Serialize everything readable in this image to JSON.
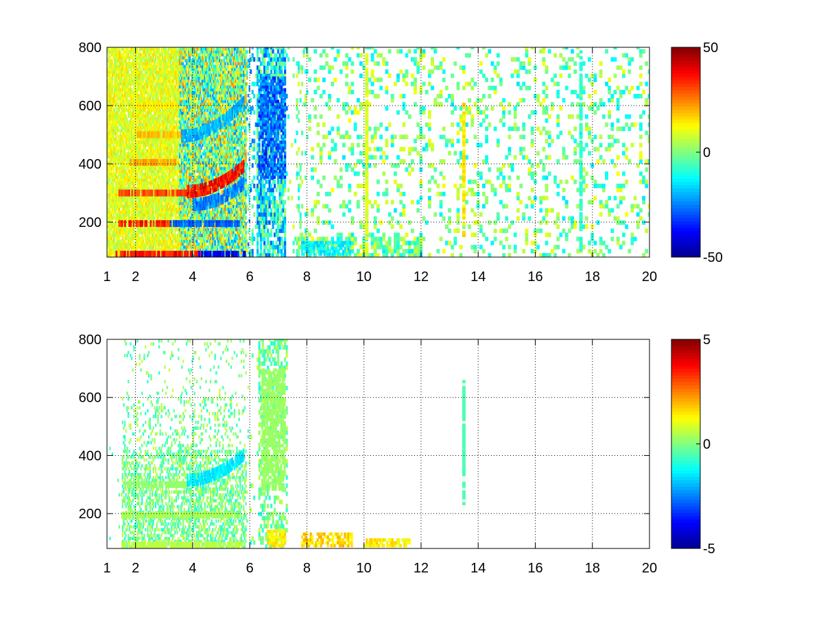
{
  "colormap": [
    "#00008f",
    "#0000ff",
    "#0080ff",
    "#00ffff",
    "#80ff80",
    "#ffff00",
    "#ff8000",
    "#ff0000",
    "#800000"
  ],
  "chart_data": [
    {
      "type": "heatmap",
      "title": "",
      "xlabel": "",
      "ylabel": "",
      "xlim": [
        1,
        20
      ],
      "ylim": [
        80,
        800
      ],
      "grid": true,
      "x_ticks": [
        1,
        2,
        4,
        6,
        8,
        10,
        12,
        14,
        16,
        18,
        20
      ],
      "x_tick_labels": [
        "1",
        "2",
        "4",
        "6",
        "8",
        "10",
        "12",
        "14",
        "16",
        "18",
        "20"
      ],
      "y_ticks": [
        200,
        400,
        600,
        800
      ],
      "y_tick_labels": [
        "200",
        "400",
        "600",
        "800"
      ],
      "colorbar": {
        "clim": [
          -50,
          50
        ],
        "ticks": [
          -50,
          0,
          50
        ],
        "tick_labels": [
          "-50",
          "0",
          "50"
        ]
      },
      "features": [
        {
          "kind": "band",
          "x": [
            1.4,
            3.8
          ],
          "y": 300,
          "value": 32
        },
        {
          "kind": "band",
          "x": [
            1.4,
            3.2
          ],
          "y": 195,
          "value": 35
        },
        {
          "kind": "band",
          "x": [
            1.3,
            4.3
          ],
          "y": 90,
          "value": 38
        },
        {
          "kind": "band",
          "x": [
            1.8,
            3.4
          ],
          "y": 405,
          "value": 22
        },
        {
          "kind": "band",
          "x": [
            2.0,
            3.6
          ],
          "y": 500,
          "value": 20
        },
        {
          "kind": "band",
          "x": [
            2.0,
            3.4
          ],
          "y": 600,
          "value": 15
        },
        {
          "kind": "band",
          "x": [
            3.2,
            5.6
          ],
          "y": 195,
          "value": -30
        },
        {
          "kind": "band",
          "x": [
            4.2,
            5.8
          ],
          "y": 90,
          "value": -42
        },
        {
          "kind": "curve",
          "x": [
            3.8,
            5.8
          ],
          "y": [
            290,
            380
          ],
          "value": 40
        },
        {
          "kind": "curve",
          "x": [
            4.0,
            5.8
          ],
          "y": [
            245,
            320
          ],
          "value": -28
        },
        {
          "kind": "curve",
          "x": [
            3.6,
            5.8
          ],
          "y": [
            480,
            600
          ],
          "value": -22
        },
        {
          "kind": "region",
          "x": [
            6.3,
            7.2
          ],
          "y": [
            350,
            700
          ],
          "value": -30
        },
        {
          "kind": "region",
          "x": [
            7.8,
            9.5
          ],
          "y": [
            85,
            130
          ],
          "value": -15
        },
        {
          "kind": "column",
          "x": 10.1,
          "y": [
            100,
            790
          ],
          "value": 10
        },
        {
          "kind": "column",
          "x": 13.5,
          "y": [
            150,
            610
          ],
          "value": 15
        },
        {
          "kind": "column",
          "x": 17.6,
          "y": [
            100,
            790
          ],
          "value": -8
        }
      ]
    },
    {
      "type": "heatmap",
      "title": "",
      "xlabel": "",
      "ylabel": "",
      "xlim": [
        1,
        20
      ],
      "ylim": [
        80,
        800
      ],
      "grid": true,
      "x_ticks": [
        1,
        2,
        4,
        6,
        8,
        10,
        12,
        14,
        16,
        18,
        20
      ],
      "x_tick_labels": [
        "1",
        "2",
        "4",
        "6",
        "8",
        "10",
        "12",
        "14",
        "16",
        "18",
        "20"
      ],
      "y_ticks": [
        200,
        400,
        600,
        800
      ],
      "y_tick_labels": [
        "200",
        "400",
        "600",
        "800"
      ],
      "colorbar": {
        "clim": [
          -5,
          5
        ],
        "ticks": [
          -5,
          0,
          5
        ],
        "tick_labels": [
          "-5",
          "0",
          "5"
        ]
      },
      "features": [
        {
          "kind": "band",
          "x": [
            1.6,
            3.8
          ],
          "y": 300,
          "value": 0.2
        },
        {
          "kind": "band",
          "x": [
            1.5,
            5.6
          ],
          "y": 195,
          "value": 0.4
        },
        {
          "kind": "band",
          "x": [
            1.5,
            5.8
          ],
          "y": 92,
          "value": 0.6
        },
        {
          "kind": "curve",
          "x": [
            3.8,
            5.8
          ],
          "y": [
            300,
            390
          ],
          "value": -1.6
        },
        {
          "kind": "region",
          "x": [
            6.4,
            7.2
          ],
          "y": [
            280,
            700
          ],
          "value": 0.3
        },
        {
          "kind": "region",
          "x": [
            6.6,
            7.2
          ],
          "y": [
            85,
            140
          ],
          "value": 1.5
        },
        {
          "kind": "region",
          "x": [
            7.8,
            9.6
          ],
          "y": [
            85,
            130
          ],
          "value": 1.8
        },
        {
          "kind": "region",
          "x": [
            10.0,
            11.6
          ],
          "y": [
            85,
            115
          ],
          "value": 1.5
        },
        {
          "kind": "column",
          "x": 13.5,
          "y": [
            220,
            660
          ],
          "value": -0.5
        }
      ]
    }
  ]
}
